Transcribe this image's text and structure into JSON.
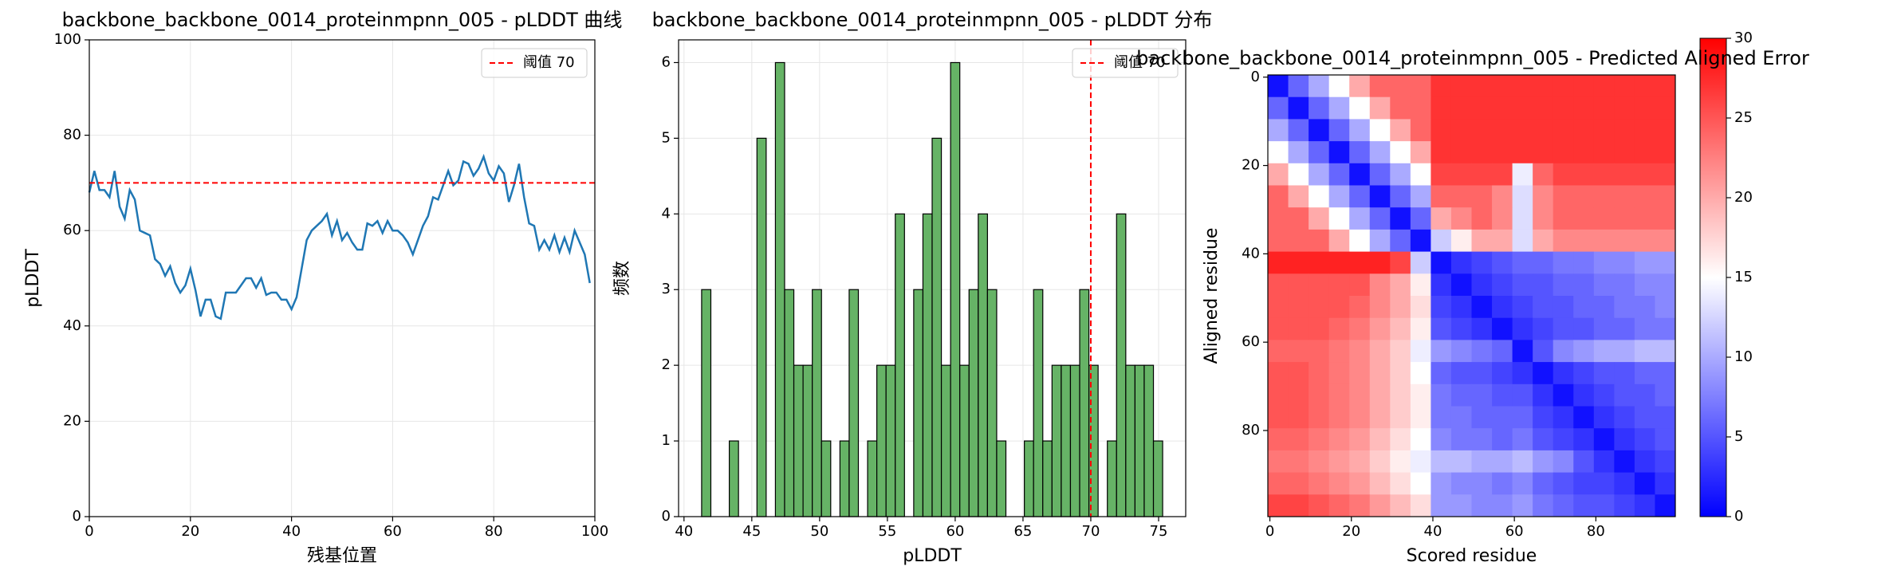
{
  "chart_data": [
    {
      "type": "line",
      "title": "backbone_backbone_0014_proteinmpnn_005 - pLDDT 曲线",
      "xlabel": "残基位置",
      "ylabel": "pLDDT",
      "x": [
        0,
        1,
        2,
        3,
        4,
        5,
        6,
        7,
        8,
        9,
        10,
        11,
        12,
        13,
        14,
        15,
        16,
        17,
        18,
        19,
        20,
        21,
        22,
        23,
        24,
        25,
        26,
        27,
        28,
        29,
        30,
        31,
        32,
        33,
        34,
        35,
        36,
        37,
        38,
        39,
        40,
        41,
        42,
        43,
        44,
        45,
        46,
        47,
        48,
        49,
        50,
        51,
        52,
        53,
        54,
        55,
        56,
        57,
        58,
        59,
        60,
        61,
        62,
        63,
        64,
        65,
        66,
        67,
        68,
        69,
        70,
        71,
        72,
        73,
        74,
        75,
        76,
        77,
        78,
        79,
        80,
        81,
        82,
        83,
        84,
        85,
        86,
        87,
        88,
        89,
        90,
        91,
        92,
        93,
        94,
        95,
        96,
        97,
        98,
        99
      ],
      "values": [
        68,
        72.5,
        68.5,
        68.5,
        67,
        72.5,
        65,
        62.5,
        68.5,
        66.5,
        60,
        59.5,
        59,
        54,
        53,
        50.5,
        52.5,
        49,
        47,
        48.5,
        52,
        47.5,
        42,
        45.5,
        45.5,
        42,
        41.5,
        47,
        47,
        47,
        48.5,
        50,
        50,
        48,
        50,
        46.5,
        47,
        47,
        45.5,
        45.5,
        43.5,
        46,
        52,
        58,
        60,
        61,
        62,
        63.5,
        59,
        62,
        58,
        59.5,
        57.5,
        56,
        56,
        61.5,
        61,
        62,
        59.5,
        62,
        60,
        60,
        59,
        57.5,
        55,
        58,
        61,
        63,
        67,
        66.5,
        69.5,
        72.5,
        69.5,
        70.5,
        74.5,
        74,
        71.5,
        73,
        75.5,
        72,
        70.5,
        73.5,
        72,
        66,
        69.5,
        74,
        67,
        61.5,
        61,
        56,
        58,
        56,
        59,
        55.5,
        58.5,
        55.5,
        60,
        57.5,
        55,
        49
      ],
      "color": "#1f77b4",
      "threshold": {
        "value": 70,
        "name": "阈值 70",
        "color": "#ff0000"
      },
      "xlim": [
        0,
        100
      ],
      "ylim": [
        0,
        100
      ],
      "xticks": [
        0,
        20,
        40,
        60,
        80,
        100
      ],
      "yticks": [
        0,
        20,
        40,
        60,
        80,
        100
      ],
      "grid": true,
      "legend": "upper right"
    },
    {
      "type": "histogram",
      "title": "backbone_backbone_0014_proteinmpnn_005 - pLDDT 分布",
      "xlabel": "pLDDT",
      "ylabel": "频数",
      "bins": [
        41.3,
        41.98,
        42.66,
        43.34,
        44.02,
        44.7,
        45.38,
        46.06,
        46.74,
        47.42,
        48.1,
        48.78,
        49.46,
        50.14,
        50.82,
        51.5,
        52.18,
        52.86,
        53.54,
        54.22,
        54.9,
        55.58,
        56.26,
        56.94,
        57.62,
        58.3,
        58.98,
        59.66,
        60.34,
        61.02,
        61.7,
        62.38,
        63.06,
        63.74,
        64.42,
        65.1,
        65.78,
        66.46,
        67.14,
        67.82,
        68.5,
        69.18,
        69.86,
        70.54,
        71.22,
        71.9,
        72.58,
        73.26,
        73.94,
        74.62,
        75.3
      ],
      "counts": [
        3,
        0,
        0,
        1,
        0,
        0,
        5,
        0,
        6,
        3,
        2,
        2,
        3,
        1,
        0,
        1,
        3,
        0,
        1,
        2,
        2,
        4,
        0,
        3,
        4,
        5,
        2,
        6,
        2,
        3,
        4,
        3,
        1,
        0,
        0,
        1,
        3,
        1,
        2,
        2,
        2,
        3,
        2,
        0,
        1,
        4,
        2,
        2,
        2,
        1
      ],
      "color": "#66b366",
      "threshold": {
        "value": 70,
        "name": "阈值 70",
        "color": "#ff0000"
      },
      "xlim": [
        39.6,
        77
      ],
      "ylim": [
        0,
        6.3
      ],
      "xticks": [
        40,
        45,
        50,
        55,
        60,
        65,
        70,
        75
      ],
      "yticks": [
        0,
        1,
        2,
        3,
        4,
        5,
        6
      ],
      "grid": true,
      "legend": "upper right"
    },
    {
      "type": "heatmap",
      "title": "backbone_backbone_0014_proteinmpnn_005 - Predicted Aligned Error",
      "xlabel": "Scored residue",
      "ylabel": "Aligned residue",
      "colormap": "bwr",
      "clim": [
        0,
        30
      ],
      "cticks": [
        0,
        5,
        10,
        15,
        20,
        25,
        30
      ],
      "xlim": [
        -0.5,
        99.5
      ],
      "ylim": [
        99.5,
        -0.5
      ],
      "xticks": [
        0,
        20,
        40,
        60,
        80
      ],
      "yticks": [
        0,
        20,
        40,
        60,
        80
      ],
      "grid": false,
      "matrix": [
        [
          1,
          6,
          10,
          15,
          20,
          24,
          24,
          24,
          27,
          27,
          27,
          27,
          27,
          27,
          27,
          27,
          27,
          27,
          27,
          27
        ],
        [
          6,
          1,
          6,
          10,
          15,
          20,
          24,
          24,
          27,
          27,
          27,
          27,
          27,
          27,
          27,
          27,
          27,
          27,
          27,
          27
        ],
        [
          10,
          6,
          1,
          6,
          10,
          15,
          20,
          24,
          27,
          27,
          27,
          27,
          27,
          27,
          27,
          27,
          27,
          27,
          27,
          27
        ],
        [
          15,
          10,
          6,
          1,
          6,
          10,
          15,
          20,
          27,
          27,
          27,
          27,
          27,
          27,
          27,
          27,
          27,
          27,
          27,
          27
        ],
        [
          20,
          15,
          10,
          6,
          1,
          6,
          10,
          15,
          26,
          26,
          26,
          26,
          14,
          24,
          26,
          26,
          26,
          26,
          26,
          26
        ],
        [
          24,
          20,
          15,
          10,
          6,
          1,
          6,
          10,
          24,
          24,
          24,
          22,
          13,
          22,
          24,
          24,
          24,
          24,
          24,
          24
        ],
        [
          24,
          24,
          20,
          15,
          10,
          6,
          1,
          6,
          20,
          22,
          24,
          22,
          13,
          22,
          24,
          24,
          24,
          24,
          24,
          24
        ],
        [
          24,
          24,
          24,
          20,
          15,
          10,
          6,
          1,
          12,
          16,
          20,
          20,
          13,
          20,
          22,
          22,
          22,
          22,
          22,
          22
        ],
        [
          28,
          28,
          28,
          28,
          28,
          28,
          26,
          12,
          1,
          3,
          4,
          5,
          6,
          6,
          7,
          7,
          8,
          8,
          9,
          9
        ],
        [
          25,
          25,
          25,
          25,
          25,
          22,
          20,
          16,
          3,
          1,
          3,
          4,
          5,
          5,
          6,
          6,
          7,
          7,
          8,
          8
        ],
        [
          25,
          25,
          25,
          25,
          24,
          22,
          20,
          17,
          4,
          3,
          1,
          3,
          4,
          5,
          5,
          6,
          6,
          7,
          7,
          8
        ],
        [
          25,
          25,
          25,
          24,
          23,
          21,
          19,
          16,
          5,
          4,
          3,
          1,
          3,
          4,
          5,
          5,
          6,
          6,
          7,
          7
        ],
        [
          24,
          24,
          24,
          23,
          22,
          20,
          18,
          14,
          9,
          8,
          7,
          6,
          1,
          5,
          8,
          9,
          10,
          10,
          11,
          11
        ],
        [
          25,
          25,
          24,
          23,
          22,
          20,
          18,
          15,
          6,
          5,
          5,
          4,
          3,
          1,
          3,
          4,
          5,
          5,
          6,
          6
        ],
        [
          25,
          25,
          24,
          23,
          22,
          20,
          18,
          16,
          7,
          6,
          6,
          5,
          5,
          3,
          1,
          3,
          4,
          5,
          5,
          6
        ],
        [
          25,
          25,
          24,
          23,
          22,
          20,
          18,
          16,
          7,
          7,
          6,
          6,
          6,
          4,
          3,
          1,
          3,
          4,
          5,
          5
        ],
        [
          24,
          24,
          23,
          22,
          21,
          19,
          17,
          15,
          8,
          7,
          7,
          6,
          7,
          5,
          4,
          3,
          1,
          3,
          4,
          5
        ],
        [
          23,
          23,
          22,
          21,
          20,
          18,
          16,
          14,
          11,
          11,
          10,
          10,
          11,
          9,
          8,
          5,
          3,
          1,
          3,
          4
        ],
        [
          24,
          24,
          23,
          22,
          21,
          19,
          17,
          15,
          9,
          8,
          8,
          7,
          8,
          6,
          5,
          4,
          4,
          3,
          1,
          3
        ],
        [
          26,
          26,
          25,
          24,
          23,
          21,
          19,
          17,
          9,
          9,
          8,
          8,
          9,
          7,
          6,
          5,
          5,
          4,
          3,
          1
        ]
      ]
    }
  ]
}
